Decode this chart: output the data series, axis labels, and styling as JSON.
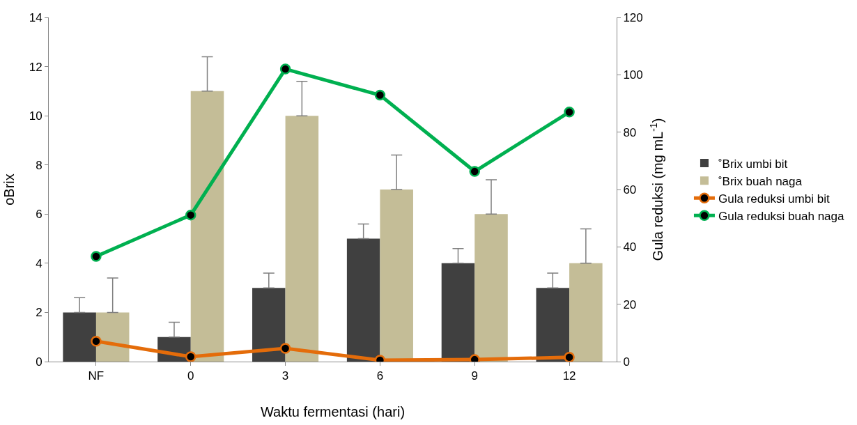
{
  "chart_data": {
    "type": "bar",
    "xlabel": "Waktu fermentasi (hari)",
    "ylabel": "oBrix",
    "y2label": "Gula reduksi (mg mL$^{-1}$)",
    "categories": [
      "NF",
      "0",
      "3",
      "6",
      "9",
      "12"
    ],
    "ylim": [
      0,
      14
    ],
    "yticks": [
      0,
      2,
      4,
      6,
      8,
      10,
      12,
      14
    ],
    "y2lim": [
      0,
      120
    ],
    "y2ticks": [
      0,
      20,
      40,
      60,
      80,
      100,
      120
    ],
    "legend": "right",
    "series": [
      {
        "name": "˚Brix umbi bit",
        "color": "#404040",
        "values": [
          2,
          1,
          3,
          5,
          4,
          3
        ],
        "errors": [
          [
            2,
            2.6
          ],
          [
            1,
            1.6
          ],
          [
            3,
            3.6
          ],
          [
            5,
            5.6
          ],
          [
            4,
            4.6
          ],
          [
            3,
            3.6
          ]
        ]
      },
      {
        "name": "˚Brix buah naga",
        "color": "#c4bd97",
        "values": [
          2,
          11,
          10,
          7,
          6,
          4
        ],
        "errors": [
          [
            2,
            3.4
          ],
          [
            11,
            12.4
          ],
          [
            10,
            11.4
          ],
          [
            7,
            8.4
          ],
          [
            6,
            7.4
          ],
          [
            4,
            5.4
          ]
        ]
      },
      {
        "name": "Gula reduksi umbi bit",
        "type": "line",
        "axis": "y2",
        "color": "#e46c0a",
        "marker": "circle",
        "values": [
          7.1,
          1.7,
          4.6,
          0.5,
          0.7,
          1.5
        ]
      },
      {
        "name": "Gula reduksi buah naga",
        "type": "line",
        "axis": "y2",
        "color": "#00b050",
        "marker": "circle",
        "values": [
          36.7,
          51.1,
          102,
          92.9,
          66.3,
          87
        ]
      }
    ]
  }
}
